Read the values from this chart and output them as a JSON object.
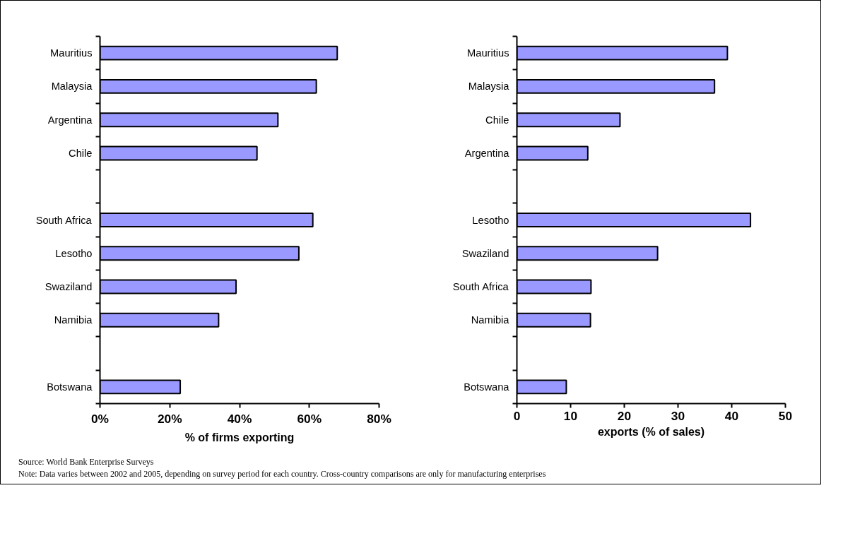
{
  "chart_data": [
    {
      "type": "bar",
      "orientation": "horizontal",
      "xlabel": "% of firms exporting",
      "categories": [
        "Mauritius",
        "Malaysia",
        "Argentina",
        "Chile",
        null,
        "South Africa",
        "Lesotho",
        "Swaziland",
        "Namibia",
        null,
        "Botswana"
      ],
      "values": [
        68,
        62,
        51,
        45,
        null,
        61,
        57,
        39,
        34,
        null,
        23
      ],
      "color": "#9999ff",
      "xlim": [
        0,
        80
      ],
      "xticks": [
        {
          "value": 0,
          "label": "0%"
        },
        {
          "value": 20,
          "label": "20%"
        },
        {
          "value": 40,
          "label": "40%"
        },
        {
          "value": 60,
          "label": "60%"
        },
        {
          "value": 80,
          "label": "80%"
        }
      ],
      "grid": false
    },
    {
      "type": "bar",
      "orientation": "horizontal",
      "xlabel": "exports (% of sales)",
      "categories": [
        "Mauritius",
        "Malaysia",
        "Chile",
        "Argentina",
        null,
        "Lesotho",
        "Swaziland",
        "South Africa",
        "Namibia",
        null,
        "Botswana"
      ],
      "values": [
        39.2,
        36.8,
        19.2,
        13.2,
        null,
        43.5,
        26.2,
        13.8,
        13.7,
        null,
        9.2
      ],
      "color": "#9999ff",
      "xlim": [
        0,
        50
      ],
      "xticks": [
        0,
        10,
        20,
        30,
        40,
        50
      ],
      "grid": false,
      "annotations": [
        "Source: World Bank Enterprise Surveys",
        "Note: Data varies between 2002 and 2005, depending on survey period for each country. Cross-country comparisons are only for manufacturing enterprises"
      ]
    }
  ]
}
